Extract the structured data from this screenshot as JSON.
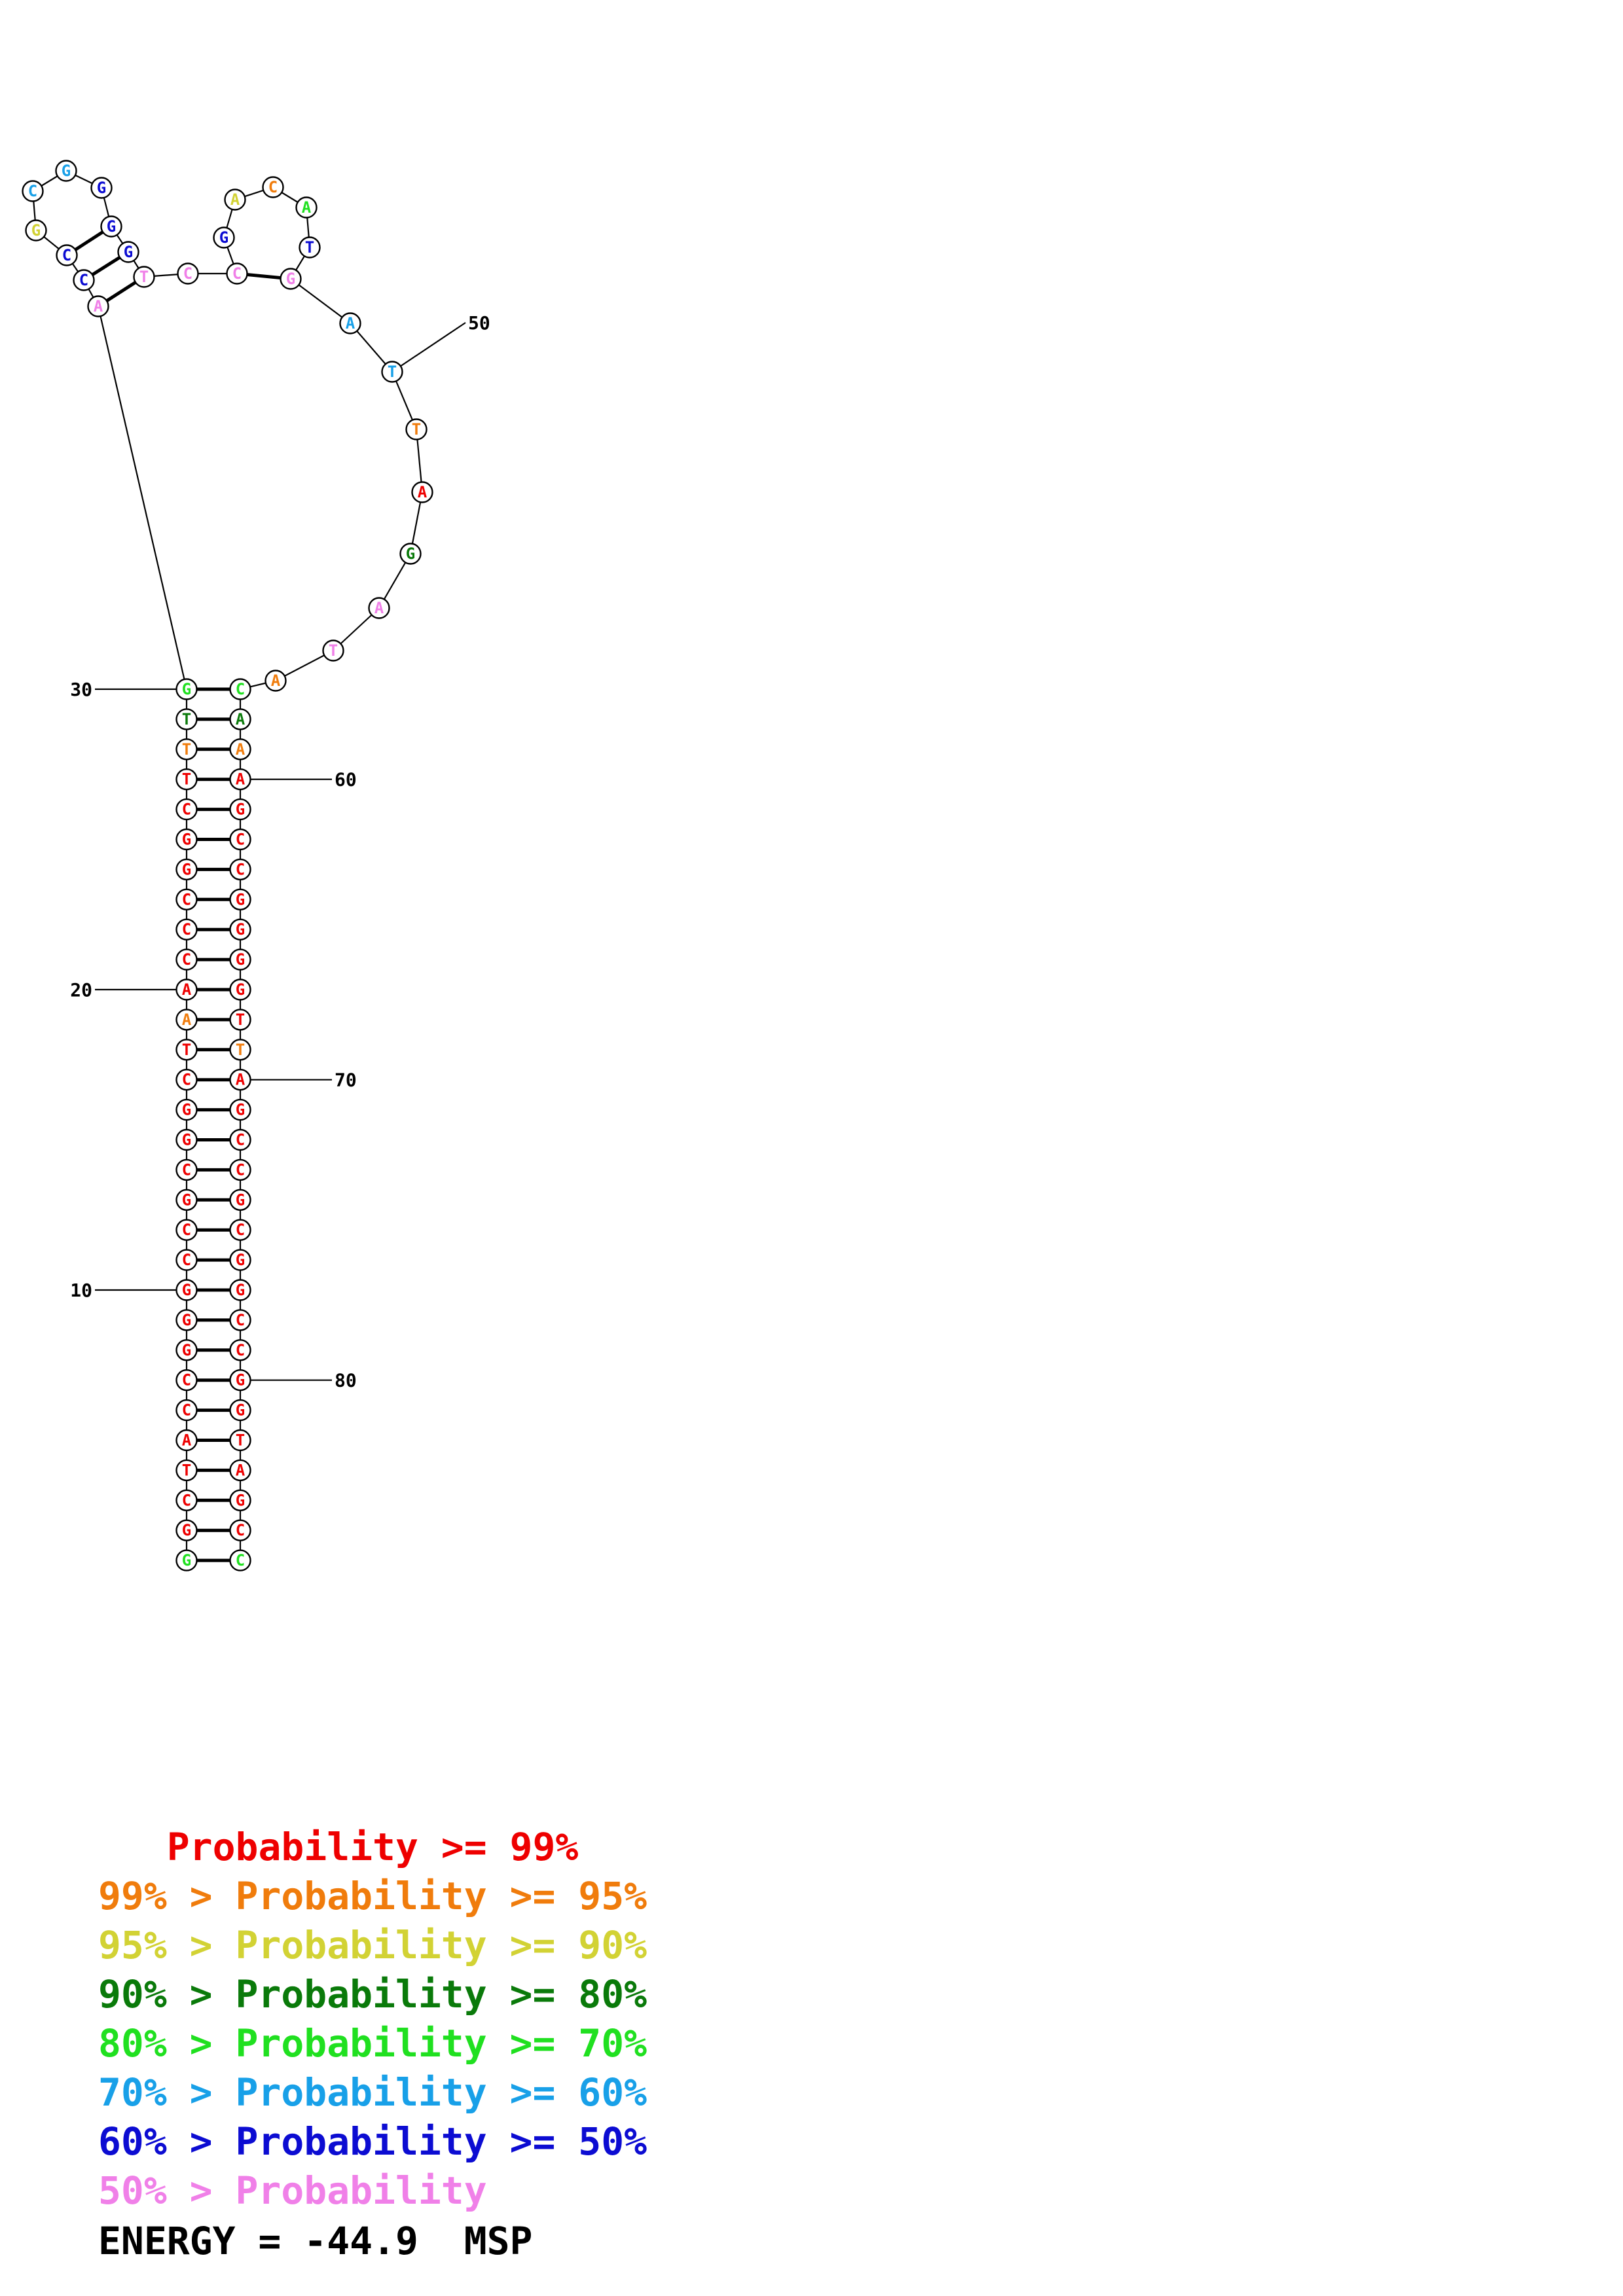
{
  "colors": {
    "p99": "#ee0000",
    "p95": "#f07c0c",
    "p90": "#d2d234",
    "p80": "#0a7a0a",
    "p70": "#20e020",
    "p60": "#18a0e8",
    "p50": "#0c0cd2",
    "plow": "#f080e8"
  },
  "sequence": [
    {
      "n": 1,
      "b": "G",
      "c": "p70"
    },
    {
      "n": 2,
      "b": "G",
      "c": "p99"
    },
    {
      "n": 3,
      "b": "C",
      "c": "p99"
    },
    {
      "n": 4,
      "b": "T",
      "c": "p99"
    },
    {
      "n": 5,
      "b": "A",
      "c": "p99"
    },
    {
      "n": 6,
      "b": "C",
      "c": "p99"
    },
    {
      "n": 7,
      "b": "C",
      "c": "p99"
    },
    {
      "n": 8,
      "b": "G",
      "c": "p99"
    },
    {
      "n": 9,
      "b": "G",
      "c": "p99"
    },
    {
      "n": 10,
      "b": "G",
      "c": "p99"
    },
    {
      "n": 11,
      "b": "C",
      "c": "p99"
    },
    {
      "n": 12,
      "b": "C",
      "c": "p99"
    },
    {
      "n": 13,
      "b": "G",
      "c": "p99"
    },
    {
      "n": 14,
      "b": "C",
      "c": "p99"
    },
    {
      "n": 15,
      "b": "G",
      "c": "p99"
    },
    {
      "n": 16,
      "b": "G",
      "c": "p99"
    },
    {
      "n": 17,
      "b": "C",
      "c": "p99"
    },
    {
      "n": 18,
      "b": "T",
      "c": "p99"
    },
    {
      "n": 19,
      "b": "A",
      "c": "p95"
    },
    {
      "n": 20,
      "b": "A",
      "c": "p99"
    },
    {
      "n": 21,
      "b": "C",
      "c": "p99"
    },
    {
      "n": 22,
      "b": "C",
      "c": "p99"
    },
    {
      "n": 23,
      "b": "C",
      "c": "p99"
    },
    {
      "n": 24,
      "b": "G",
      "c": "p99"
    },
    {
      "n": 25,
      "b": "G",
      "c": "p99"
    },
    {
      "n": 26,
      "b": "C",
      "c": "p99"
    },
    {
      "n": 27,
      "b": "T",
      "c": "p99"
    },
    {
      "n": 28,
      "b": "T",
      "c": "p95"
    },
    {
      "n": 29,
      "b": "T",
      "c": "p80"
    },
    {
      "n": 30,
      "b": "G",
      "c": "p70"
    },
    {
      "n": 31,
      "b": "A",
      "c": "plow"
    },
    {
      "n": 32,
      "b": "C",
      "c": "p50"
    },
    {
      "n": 33,
      "b": "C",
      "c": "p50"
    },
    {
      "n": 34,
      "b": "G",
      "c": "p90"
    },
    {
      "n": 35,
      "b": "C",
      "c": "p60"
    },
    {
      "n": 36,
      "b": "G",
      "c": "p60"
    },
    {
      "n": 37,
      "b": "G",
      "c": "p50"
    },
    {
      "n": 38,
      "b": "G",
      "c": "p50"
    },
    {
      "n": 39,
      "b": "G",
      "c": "p50"
    },
    {
      "n": 40,
      "b": "T",
      "c": "plow"
    },
    {
      "n": 41,
      "b": "C",
      "c": "plow"
    },
    {
      "n": 42,
      "b": "C",
      "c": "plow"
    },
    {
      "n": 43,
      "b": "G",
      "c": "p50"
    },
    {
      "n": 44,
      "b": "A",
      "c": "p90"
    },
    {
      "n": 45,
      "b": "C",
      "c": "p95"
    },
    {
      "n": 46,
      "b": "A",
      "c": "p70"
    },
    {
      "n": 47,
      "b": "T",
      "c": "p50"
    },
    {
      "n": 48,
      "b": "G",
      "c": "plow"
    },
    {
      "n": 49,
      "b": "A",
      "c": "p60"
    },
    {
      "n": 50,
      "b": "T",
      "c": "p60"
    },
    {
      "n": 51,
      "b": "T",
      "c": "p95"
    },
    {
      "n": 52,
      "b": "A",
      "c": "p99"
    },
    {
      "n": 53,
      "b": "G",
      "c": "p80"
    },
    {
      "n": 54,
      "b": "A",
      "c": "plow"
    },
    {
      "n": 55,
      "b": "T",
      "c": "plow"
    },
    {
      "n": 56,
      "b": "A",
      "c": "p95"
    },
    {
      "n": 57,
      "b": "C",
      "c": "p70"
    },
    {
      "n": 58,
      "b": "A",
      "c": "p80"
    },
    {
      "n": 59,
      "b": "A",
      "c": "p95"
    },
    {
      "n": 60,
      "b": "A",
      "c": "p99"
    },
    {
      "n": 61,
      "b": "G",
      "c": "p99"
    },
    {
      "n": 62,
      "b": "C",
      "c": "p99"
    },
    {
      "n": 63,
      "b": "C",
      "c": "p99"
    },
    {
      "n": 64,
      "b": "G",
      "c": "p99"
    },
    {
      "n": 65,
      "b": "G",
      "c": "p99"
    },
    {
      "n": 66,
      "b": "G",
      "c": "p99"
    },
    {
      "n": 67,
      "b": "G",
      "c": "p99"
    },
    {
      "n": 68,
      "b": "T",
      "c": "p99"
    },
    {
      "n": 69,
      "b": "T",
      "c": "p95"
    },
    {
      "n": 70,
      "b": "A",
      "c": "p99"
    },
    {
      "n": 71,
      "b": "G",
      "c": "p99"
    },
    {
      "n": 72,
      "b": "C",
      "c": "p99"
    },
    {
      "n": 73,
      "b": "C",
      "c": "p99"
    },
    {
      "n": 74,
      "b": "G",
      "c": "p99"
    },
    {
      "n": 75,
      "b": "C",
      "c": "p99"
    },
    {
      "n": 76,
      "b": "G",
      "c": "p99"
    },
    {
      "n": 77,
      "b": "G",
      "c": "p99"
    },
    {
      "n": 78,
      "b": "C",
      "c": "p99"
    },
    {
      "n": 79,
      "b": "C",
      "c": "p99"
    },
    {
      "n": 80,
      "b": "G",
      "c": "p99"
    },
    {
      "n": 81,
      "b": "G",
      "c": "p99"
    },
    {
      "n": 82,
      "b": "T",
      "c": "p99"
    },
    {
      "n": 83,
      "b": "A",
      "c": "p99"
    },
    {
      "n": 84,
      "b": "G",
      "c": "p99"
    },
    {
      "n": 85,
      "b": "C",
      "c": "p99"
    },
    {
      "n": 86,
      "b": "C",
      "c": "p70"
    }
  ],
  "number_labels": [
    {
      "n": 10,
      "text": "10"
    },
    {
      "n": 20,
      "text": "20"
    },
    {
      "n": 30,
      "text": "30"
    },
    {
      "n": 50,
      "text": "50"
    },
    {
      "n": 60,
      "text": "60"
    },
    {
      "n": 70,
      "text": "70"
    },
    {
      "n": 80,
      "text": "80"
    }
  ],
  "legend": [
    {
      "lead": "   ",
      "mid": "Probability",
      "tail": " >= 99%",
      "c": "p99"
    },
    {
      "lead": "99% > ",
      "mid": "Probability",
      "tail": " >= 95%",
      "c": "p95"
    },
    {
      "lead": "95% > ",
      "mid": "Probability",
      "tail": " >= 90%",
      "c": "p90"
    },
    {
      "lead": "90% > ",
      "mid": "Probability",
      "tail": " >= 80%",
      "c": "p80"
    },
    {
      "lead": "80% > ",
      "mid": "Probability",
      "tail": " >= 70%",
      "c": "p70"
    },
    {
      "lead": "70% > ",
      "mid": "Probability",
      "tail": " >= 60%",
      "c": "p60"
    },
    {
      "lead": "60% > ",
      "mid": "Probability",
      "tail": " >= 50%",
      "c": "p50"
    },
    {
      "lead": "50% > ",
      "mid": "Probability",
      "tail": "",
      "c": "plow"
    }
  ],
  "energy": {
    "label": "ENERGY = -44.9  MSP"
  }
}
